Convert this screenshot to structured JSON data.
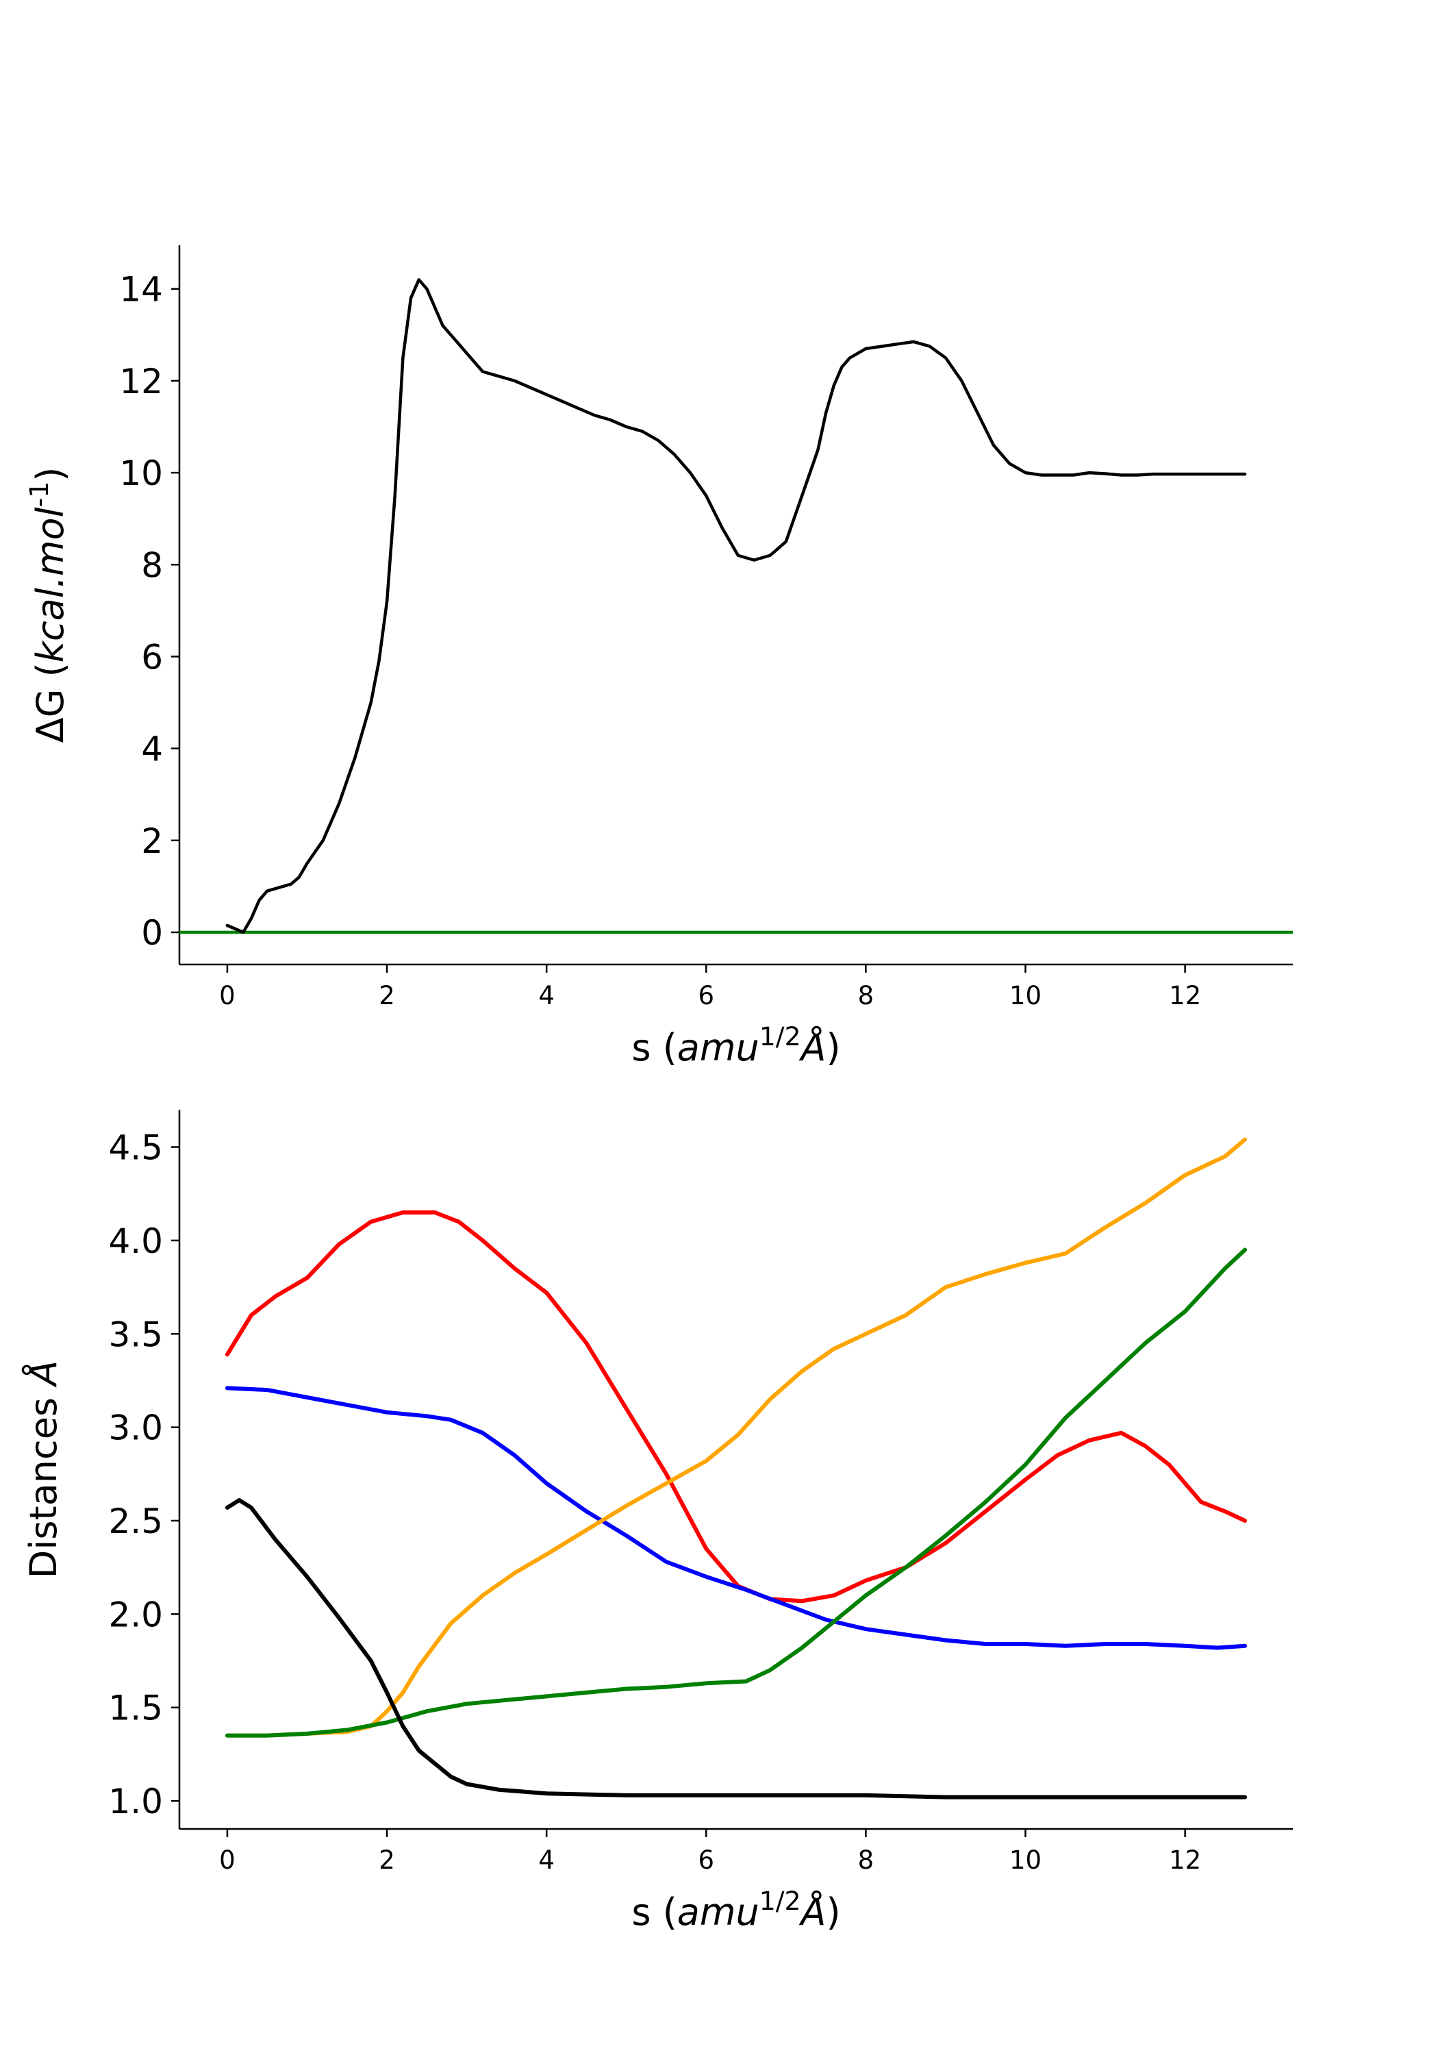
{
  "chart_data": [
    {
      "type": "line",
      "xlabel": "s (amu^{1/2}Å)",
      "ylabel": "ΔG (kcal.mol^{-1})",
      "xlim": [
        -0.6,
        13.35
      ],
      "ylim": [
        -0.7,
        14.95
      ],
      "xticks": [
        0,
        2,
        4,
        6,
        8,
        10,
        12
      ],
      "yticks": [
        0,
        2,
        4,
        6,
        8,
        10,
        12,
        14
      ],
      "baseline": {
        "y": 0,
        "color": "#008000"
      },
      "series": [
        {
          "color": "#000000",
          "x": [
            0,
            0.2,
            0.3,
            0.4,
            0.5,
            0.6,
            0.8,
            0.9,
            1.0,
            1.2,
            1.4,
            1.6,
            1.8,
            1.9,
            2.0,
            2.1,
            2.2,
            2.3,
            2.4,
            2.5,
            2.6,
            2.7,
            2.8,
            2.9,
            3.0,
            3.1,
            3.2,
            3.4,
            3.6,
            3.8,
            4.0,
            4.2,
            4.4,
            4.6,
            4.8,
            5.0,
            5.2,
            5.4,
            5.6,
            5.8,
            6.0,
            6.2,
            6.4,
            6.6,
            6.8,
            7.0,
            7.2,
            7.4,
            7.5,
            7.6,
            7.7,
            7.8,
            7.9,
            8.0,
            8.2,
            8.4,
            8.6,
            8.8,
            9.0,
            9.2,
            9.4,
            9.6,
            9.8,
            10.0,
            10.2,
            10.4,
            10.6,
            10.8,
            11.0,
            11.2,
            11.4,
            11.6,
            11.8,
            12.0,
            12.2,
            12.4,
            12.6,
            12.75
          ],
          "y": [
            0.15,
            0.0,
            0.3,
            0.7,
            0.9,
            0.95,
            1.05,
            1.2,
            1.5,
            2.0,
            2.8,
            3.8,
            5.0,
            5.9,
            7.2,
            9.5,
            12.5,
            13.8,
            14.2,
            14.0,
            13.6,
            13.2,
            13.0,
            12.8,
            12.6,
            12.4,
            12.2,
            12.1,
            12.0,
            11.85,
            11.7,
            11.55,
            11.4,
            11.25,
            11.15,
            11.0,
            10.9,
            10.7,
            10.4,
            10.0,
            9.5,
            8.8,
            8.2,
            8.1,
            8.2,
            8.5,
            9.5,
            10.5,
            11.3,
            11.9,
            12.3,
            12.5,
            12.6,
            12.7,
            12.75,
            12.8,
            12.85,
            12.75,
            12.5,
            12.0,
            11.3,
            10.6,
            10.2,
            10.0,
            9.95,
            9.95,
            9.95,
            10.0,
            9.98,
            9.95,
            9.95,
            9.97,
            9.97,
            9.97,
            9.97,
            9.97,
            9.97,
            9.97
          ]
        }
      ]
    },
    {
      "type": "line",
      "xlabel": "s (amu^{1/2}Å)",
      "ylabel": "Distances Å",
      "xlim": [
        -0.6,
        13.35
      ],
      "ylim": [
        0.85,
        4.7
      ],
      "xticks": [
        0,
        2,
        4,
        6,
        8,
        10,
        12
      ],
      "yticks": [
        1.0,
        1.5,
        2.0,
        2.5,
        3.0,
        3.5,
        4.0,
        4.5
      ],
      "series": [
        {
          "color": "#ff0000",
          "x": [
            0,
            0.3,
            0.6,
            1.0,
            1.4,
            1.8,
            2.2,
            2.6,
            2.9,
            3.2,
            3.6,
            4.0,
            4.5,
            5.0,
            5.5,
            6.0,
            6.4,
            6.8,
            7.2,
            7.6,
            8.0,
            8.5,
            9.0,
            9.5,
            10.0,
            10.4,
            10.8,
            11.2,
            11.5,
            11.8,
            12.2,
            12.5,
            12.75
          ],
          "y": [
            3.39,
            3.6,
            3.7,
            3.8,
            3.98,
            4.1,
            4.15,
            4.15,
            4.1,
            4.0,
            3.85,
            3.72,
            3.45,
            3.1,
            2.75,
            2.35,
            2.15,
            2.08,
            2.07,
            2.1,
            2.18,
            2.25,
            2.38,
            2.55,
            2.72,
            2.85,
            2.93,
            2.97,
            2.9,
            2.8,
            2.6,
            2.55,
            2.5
          ]
        },
        {
          "color": "#0000ff",
          "x": [
            0,
            0.5,
            1.0,
            1.5,
            2.0,
            2.5,
            2.8,
            3.2,
            3.6,
            4.0,
            4.5,
            5.0,
            5.5,
            6.0,
            6.5,
            7.0,
            7.5,
            8.0,
            8.5,
            9.0,
            9.5,
            10.0,
            10.5,
            11.0,
            11.5,
            12.0,
            12.4,
            12.75
          ],
          "y": [
            3.21,
            3.2,
            3.16,
            3.12,
            3.08,
            3.06,
            3.04,
            2.97,
            2.85,
            2.7,
            2.55,
            2.42,
            2.28,
            2.2,
            2.13,
            2.05,
            1.97,
            1.92,
            1.89,
            1.86,
            1.84,
            1.84,
            1.83,
            1.84,
            1.84,
            1.83,
            1.82,
            1.83
          ]
        },
        {
          "color": "#ffa500",
          "x": [
            0,
            0.5,
            1.0,
            1.5,
            1.8,
            2.0,
            2.2,
            2.4,
            2.8,
            3.2,
            3.6,
            4.0,
            4.5,
            5.0,
            5.5,
            6.0,
            6.4,
            6.8,
            7.2,
            7.6,
            8.0,
            8.5,
            9.0,
            9.5,
            10.0,
            10.5,
            11.0,
            11.5,
            12.0,
            12.5,
            12.75
          ],
          "y": [
            1.35,
            1.35,
            1.36,
            1.37,
            1.4,
            1.48,
            1.58,
            1.72,
            1.95,
            2.1,
            2.22,
            2.32,
            2.45,
            2.58,
            2.7,
            2.82,
            2.96,
            3.15,
            3.3,
            3.42,
            3.5,
            3.6,
            3.75,
            3.82,
            3.88,
            3.93,
            4.07,
            4.2,
            4.35,
            4.45,
            4.54
          ]
        },
        {
          "color": "#008000",
          "x": [
            0,
            0.5,
            1.0,
            1.5,
            2.0,
            2.5,
            3.0,
            3.5,
            4.0,
            4.5,
            5.0,
            5.5,
            6.0,
            6.5,
            6.8,
            7.2,
            7.6,
            8.0,
            8.5,
            9.0,
            9.5,
            10.0,
            10.5,
            11.0,
            11.5,
            12.0,
            12.5,
            12.75
          ],
          "y": [
            1.35,
            1.35,
            1.36,
            1.38,
            1.42,
            1.48,
            1.52,
            1.54,
            1.56,
            1.58,
            1.6,
            1.61,
            1.63,
            1.64,
            1.7,
            1.82,
            1.96,
            2.1,
            2.25,
            2.42,
            2.6,
            2.8,
            3.05,
            3.25,
            3.45,
            3.62,
            3.85,
            3.95
          ]
        },
        {
          "color": "#000000",
          "x": [
            0,
            0.15,
            0.3,
            0.6,
            1.0,
            1.4,
            1.8,
            2.0,
            2.2,
            2.4,
            2.6,
            2.8,
            3.0,
            3.4,
            4.0,
            5.0,
            6.0,
            7.0,
            8.0,
            9.0,
            10.0,
            11.0,
            12.0,
            12.75
          ],
          "y": [
            2.57,
            2.61,
            2.57,
            2.4,
            2.2,
            1.98,
            1.75,
            1.58,
            1.4,
            1.27,
            1.2,
            1.13,
            1.09,
            1.06,
            1.04,
            1.03,
            1.03,
            1.03,
            1.03,
            1.02,
            1.02,
            1.02,
            1.02,
            1.02
          ]
        }
      ]
    }
  ]
}
